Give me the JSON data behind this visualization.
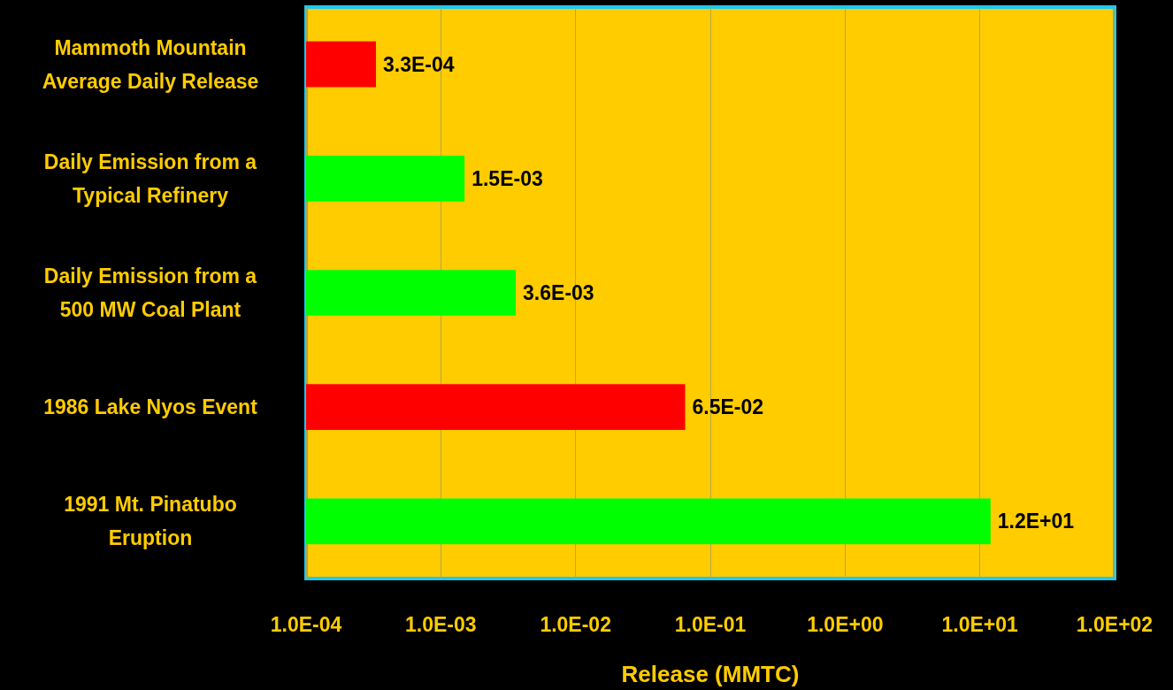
{
  "chart_data": {
    "type": "bar",
    "orientation": "horizontal",
    "log": "x",
    "grid": "x",
    "categories": [
      "Mammoth Mountain\nAverage Daily Release",
      "Daily Emission from a\nTypical Refinery",
      "Daily Emission from a\n500 MW Coal Plant",
      "1986 Lake Nyos Event",
      "1991 Mt. Pinatubo\nEruption"
    ],
    "values": [
      0.00033,
      0.0015,
      0.0036,
      0.065,
      12
    ],
    "colors": [
      "#ff0000",
      "#00ff00",
      "#00ff00",
      "#ff0000",
      "#00ff00"
    ],
    "value_labels": [
      "3.3E-04",
      "1.5E-03",
      "3.6E-03",
      "6.5E-02",
      "1.2E+01"
    ],
    "xlim": [
      0.0001,
      100
    ],
    "xticks": [
      {
        "value": 0.0001,
        "label": "1.0E-04"
      },
      {
        "value": 0.001,
        "label": "1.0E-03"
      },
      {
        "value": 0.01,
        "label": "1.0E-02"
      },
      {
        "value": 0.1,
        "label": "1.0E-01"
      },
      {
        "value": 1,
        "label": "1.0E+00"
      },
      {
        "value": 10,
        "label": "1.0E+01"
      },
      {
        "value": 100,
        "label": "1.0E+02"
      }
    ],
    "xlabel": "Release (MMTC)"
  }
}
